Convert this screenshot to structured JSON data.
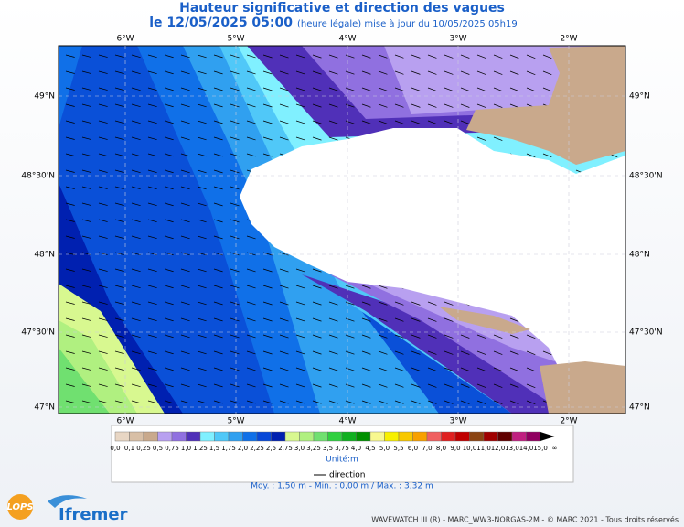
{
  "header": {
    "title": "Hauteur significative et direction des vagues",
    "date": "le 12/05/2025 05:00",
    "update": "(heure légale) mise à jour du 10/05/2025 05h19"
  },
  "map": {
    "lon_labels": [
      "6°W",
      "5°W",
      "4°W",
      "3°W",
      "2°W"
    ],
    "lat_labels": [
      "49°N",
      "48°30'N",
      "48°N",
      "47°30'N",
      "47°N"
    ]
  },
  "legend": {
    "labels": [
      "0,0",
      "0,1",
      "0,25",
      "0,5",
      "0,75",
      "1,0",
      "1,25",
      "1,5",
      "1,75",
      "2,0",
      "2,25",
      "2,5",
      "2,75",
      "3,0",
      "3,25",
      "3,5",
      "3,75",
      "4,0",
      "4,5",
      "5,0",
      "5,5",
      "6,0",
      "7,0",
      "8,0",
      "9,0",
      "10,0",
      "11,0",
      "12,0",
      "13,0",
      "14,0",
      "15,0",
      "∞"
    ],
    "colors": [
      "#e8d6c4",
      "#d8bfa6",
      "#c9a98c",
      "#b8a0f0",
      "#9070e0",
      "#5030b8",
      "#80f0ff",
      "#50c8f8",
      "#30a0f0",
      "#1070e8",
      "#0848d8",
      "#0020b0",
      "#d8f890",
      "#b0f080",
      "#70e070",
      "#30d040",
      "#10b020",
      "#009000",
      "#f8f890",
      "#f8f000",
      "#f8c800",
      "#f8a000",
      "#f06060",
      "#e02020",
      "#c00000",
      "#8b4513",
      "#a00000",
      "#600000",
      "#c02080",
      "#900060",
      "#000000"
    ],
    "unit": "Unité:m",
    "direction": "direction",
    "stats": "Moy. : 1,50 m   -   Min. : 0,00 m / Max. : 3,32 m"
  },
  "footer": {
    "logos": [
      "LOPS",
      "Ifremer"
    ],
    "credit": "WAVEWATCH III (R) - MARC_WW3-NORGAS-2M - © MARC 2021 - Tous droits réservés"
  }
}
